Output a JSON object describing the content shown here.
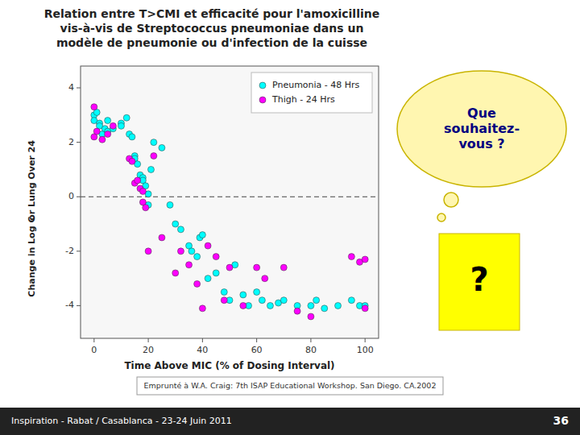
{
  "chart_data": {
    "type": "scatter",
    "title": "Relation entre T>CMI et efficacité pour l'amoxicilline\nvis-à-vis de Streptococcus pneumoniae dans un\nmodèle de pneumonie ou d'infection de la cuisse",
    "xlabel": "Time Above MIC (% of Dosing Interval)",
    "ylabel": [
      "or Lung Over 24",
      "Change in Log C"
    ],
    "xlim": [
      -5,
      105
    ],
    "ylim": [
      -5.2,
      4.8
    ],
    "xticks": [
      0,
      20,
      40,
      60,
      80,
      100
    ],
    "yticks": [
      -4,
      -2,
      0,
      2,
      4
    ],
    "grid": false,
    "legend": "upper right",
    "marker": "circle",
    "hline": {
      "y": 0,
      "line_style": "dashed"
    },
    "series": [
      {
        "name": "Pneumonia - 48 Hrs",
        "color": "#00ffff",
        "x": [
          0,
          0,
          1,
          2,
          2,
          3,
          4,
          5,
          5,
          7,
          10,
          10,
          12,
          13,
          14,
          15,
          15,
          16,
          17,
          18,
          18,
          19,
          20,
          20,
          21,
          22,
          25,
          28,
          30,
          32,
          35,
          36,
          38,
          39,
          40,
          42,
          45,
          48,
          50,
          52,
          55,
          57,
          60,
          62,
          65,
          68,
          70,
          75,
          80,
          82,
          85,
          90,
          95,
          98,
          100
        ],
        "values": [
          3.0,
          2.8,
          3.1,
          2.7,
          2.6,
          2.3,
          2.5,
          2.8,
          2.4,
          2.5,
          2.7,
          2.6,
          2.9,
          2.3,
          2.2,
          1.5,
          1.4,
          1.2,
          0.8,
          0.7,
          0.6,
          0.4,
          0.1,
          -0.3,
          1.0,
          2.0,
          1.8,
          -0.3,
          -1.0,
          -1.2,
          -1.8,
          -2.0,
          -2.2,
          -1.5,
          -1.4,
          -3.0,
          -2.8,
          -3.5,
          -3.8,
          -2.5,
          -3.6,
          -4.0,
          -3.5,
          -3.8,
          -4.0,
          -3.9,
          -3.8,
          -4.0,
          -4.0,
          -3.8,
          -4.1,
          -4.0,
          -3.8,
          -4.0,
          -4.0
        ]
      },
      {
        "name": "Thigh - 24 Hrs",
        "color": "#ff00ff",
        "x": [
          0,
          0,
          1,
          3,
          5,
          7,
          13,
          14,
          15,
          16,
          17,
          18,
          18,
          19,
          20,
          22,
          25,
          30,
          32,
          35,
          38,
          40,
          42,
          45,
          48,
          50,
          55,
          60,
          63,
          70,
          75,
          80,
          95,
          98,
          100,
          100
        ],
        "values": [
          3.3,
          2.2,
          2.4,
          2.1,
          2.3,
          2.6,
          1.4,
          1.3,
          0.5,
          0.6,
          0.3,
          0.2,
          -0.2,
          -0.4,
          -2.0,
          1.5,
          -1.5,
          -2.8,
          -2.0,
          -2.5,
          -3.2,
          -4.1,
          -1.8,
          -2.2,
          -3.8,
          -2.6,
          -4.0,
          -2.6,
          -3.0,
          -2.6,
          -4.2,
          -4.4,
          -2.2,
          -2.4,
          -4.1,
          -2.3
        ]
      }
    ],
    "annotations": [
      "Que\nsouhaitez-\nvous ?",
      "?",
      "Emprunté à W.A. Craig: 7th ISAP Educational Workshop. San Diego. CA.2002",
      "Inspiration - Rabat / Casablanca - 23-24 Juin 2011",
      "36"
    ]
  }
}
